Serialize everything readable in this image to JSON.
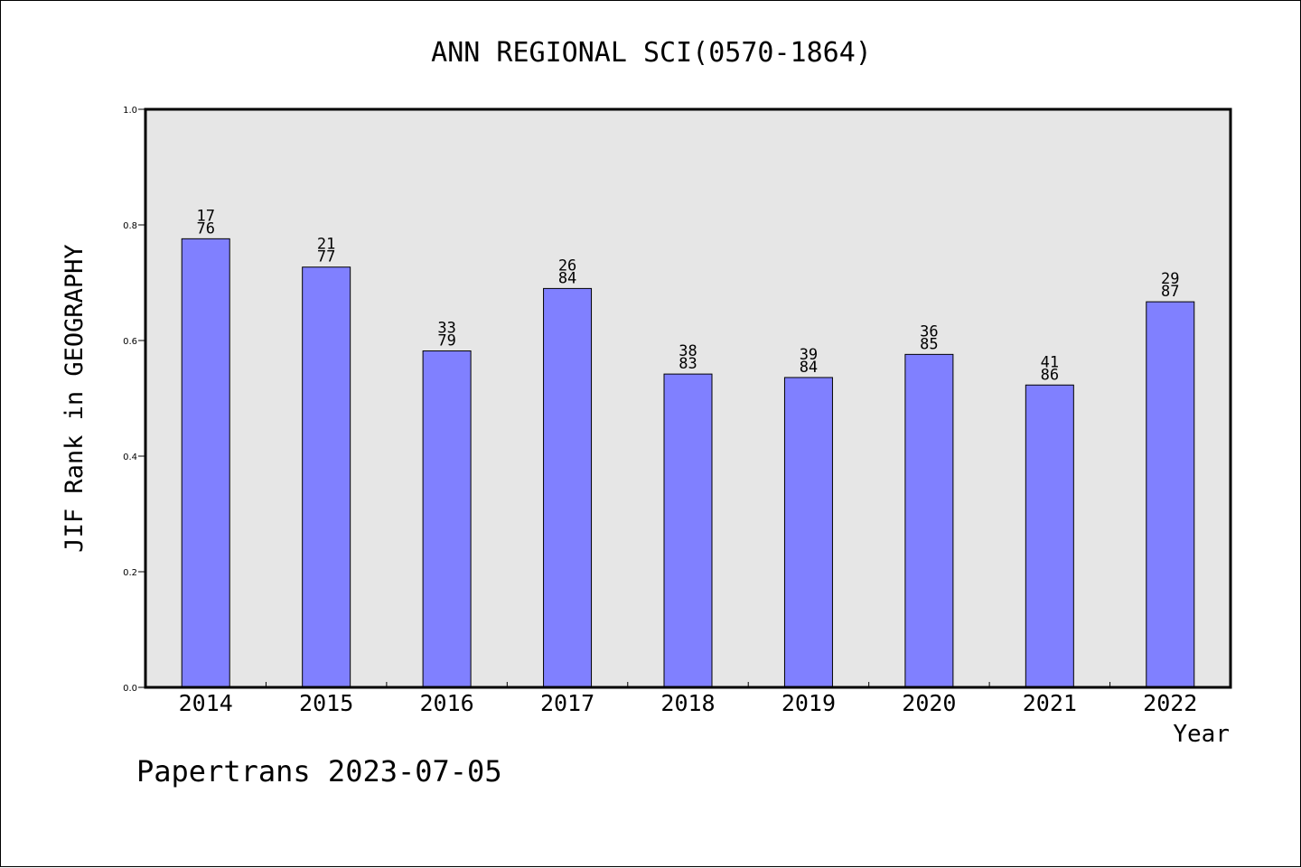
{
  "chart_data": {
    "type": "bar",
    "title": "ANN REGIONAL SCI(0570-1864)",
    "xlabel": "Year",
    "ylabel": "JIF Rank in GEOGRAPHY",
    "ylim": [
      0,
      1.0
    ],
    "yticks": [
      "0.0",
      "0.2",
      "0.4",
      "0.6",
      "0.8",
      "1.0"
    ],
    "categories": [
      "2014",
      "2015",
      "2016",
      "2017",
      "2018",
      "2019",
      "2020",
      "2021",
      "2022"
    ],
    "values": [
      0.776,
      0.727,
      0.582,
      0.69,
      0.542,
      0.536,
      0.576,
      0.523,
      0.667
    ],
    "rank": [
      "17",
      "21",
      "33",
      "26",
      "38",
      "39",
      "36",
      "41",
      "29"
    ],
    "total": [
      "76",
      "77",
      "79",
      "84",
      "83",
      "84",
      "85",
      "86",
      "87"
    ],
    "grid": false,
    "colors": {
      "bar": "#8080ff",
      "plot_background": "#e6e6e6",
      "axis": "#000000"
    }
  },
  "footer": {
    "watermark": "Papertrans 2023-07-05"
  }
}
